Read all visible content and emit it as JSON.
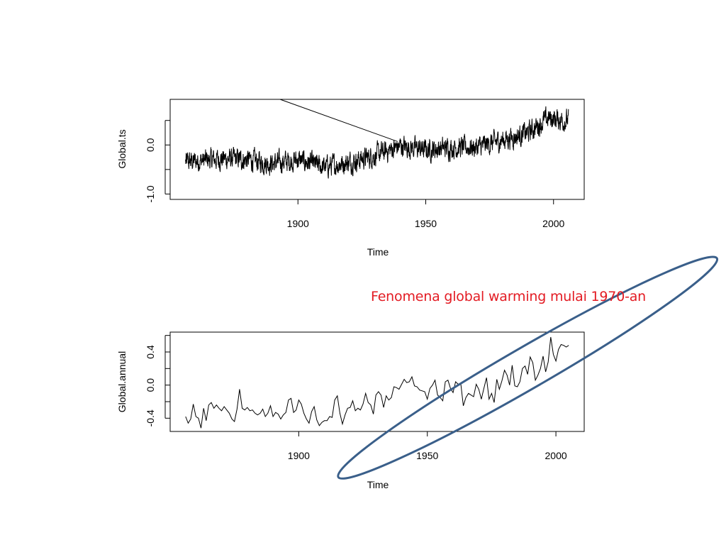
{
  "annotation": {
    "text": "Fenomena global warming mulai 1970-an",
    "color": "#e31b23"
  },
  "colors": {
    "series": "#000000",
    "highlight_ellipse": "#3a5f8a"
  },
  "chart_data": [
    {
      "type": "line",
      "series": [
        {
          "name": "Global.ts",
          "frequency": "monthly",
          "x_range": [
            1856,
            2005.9
          ],
          "y_range": [
            -1.03,
            0.85
          ],
          "shape_keypoints": [
            [
              1856,
              -0.35
            ],
            [
              1870,
              -0.28
            ],
            [
              1880,
              -0.3
            ],
            [
              1890,
              -0.38
            ],
            [
              1900,
              -0.3
            ],
            [
              1910,
              -0.45
            ],
            [
              1920,
              -0.35
            ],
            [
              1930,
              -0.22
            ],
            [
              1940,
              -0.02
            ],
            [
              1950,
              -0.1
            ],
            [
              1960,
              -0.05
            ],
            [
              1970,
              -0.05
            ],
            [
              1980,
              0.1
            ],
            [
              1990,
              0.25
            ],
            [
              1998,
              0.55
            ],
            [
              2005,
              0.5
            ]
          ]
        }
      ],
      "xlabel": "Time",
      "ylabel": "Global.ts",
      "x_ticks": [
        1900,
        1950,
        2000
      ],
      "y_ticks": [
        -1.0,
        -0.5,
        0.0,
        0.5
      ],
      "y_tick_labels": [
        "-1.0",
        "0.0"
      ],
      "xlim": [
        1850,
        2012
      ],
      "ylim": [
        -1.11,
        0.93
      ],
      "grid": false,
      "annotation_line": {
        "from": [
          1893,
          0.93
        ],
        "to": [
          1939,
          0.07
        ]
      }
    },
    {
      "type": "line",
      "series": [
        {
          "name": "Global.annual",
          "x": [
            1856,
            1857,
            1858,
            1859,
            1860,
            1861,
            1862,
            1863,
            1864,
            1865,
            1866,
            1867,
            1868,
            1869,
            1870,
            1871,
            1872,
            1873,
            1874,
            1875,
            1876,
            1877,
            1878,
            1879,
            1880,
            1881,
            1882,
            1883,
            1884,
            1885,
            1886,
            1887,
            1888,
            1889,
            1890,
            1891,
            1892,
            1893,
            1894,
            1895,
            1896,
            1897,
            1898,
            1899,
            1900,
            1901,
            1902,
            1903,
            1904,
            1905,
            1906,
            1907,
            1908,
            1909,
            1910,
            1911,
            1912,
            1913,
            1914,
            1915,
            1916,
            1917,
            1918,
            1919,
            1920,
            1921,
            1922,
            1923,
            1924,
            1925,
            1926,
            1927,
            1928,
            1929,
            1930,
            1931,
            1932,
            1933,
            1934,
            1935,
            1936,
            1937,
            1938,
            1939,
            1940,
            1941,
            1942,
            1943,
            1944,
            1945,
            1946,
            1947,
            1948,
            1949,
            1950,
            1951,
            1952,
            1953,
            1954,
            1955,
            1956,
            1957,
            1958,
            1959,
            1960,
            1961,
            1962,
            1963,
            1964,
            1965,
            1966,
            1967,
            1968,
            1969,
            1970,
            1971,
            1972,
            1973,
            1974,
            1975,
            1976,
            1977,
            1978,
            1979,
            1980,
            1981,
            1982,
            1983,
            1984,
            1985,
            1986,
            1987,
            1988,
            1989,
            1990,
            1991,
            1992,
            1993,
            1994,
            1995,
            1996,
            1997,
            1998,
            1999,
            2000,
            2001,
            2002,
            2003,
            2004,
            2005
          ],
          "values": [
            -0.38,
            -0.46,
            -0.41,
            -0.23,
            -0.38,
            -0.4,
            -0.52,
            -0.28,
            -0.43,
            -0.24,
            -0.21,
            -0.28,
            -0.24,
            -0.28,
            -0.31,
            -0.26,
            -0.3,
            -0.34,
            -0.41,
            -0.44,
            -0.29,
            -0.05,
            -0.28,
            -0.3,
            -0.27,
            -0.31,
            -0.3,
            -0.34,
            -0.36,
            -0.34,
            -0.29,
            -0.38,
            -0.34,
            -0.25,
            -0.38,
            -0.33,
            -0.35,
            -0.41,
            -0.36,
            -0.33,
            -0.18,
            -0.16,
            -0.33,
            -0.3,
            -0.18,
            -0.23,
            -0.34,
            -0.41,
            -0.46,
            -0.32,
            -0.26,
            -0.42,
            -0.49,
            -0.45,
            -0.43,
            -0.43,
            -0.38,
            -0.39,
            -0.18,
            -0.13,
            -0.34,
            -0.47,
            -0.36,
            -0.28,
            -0.27,
            -0.19,
            -0.31,
            -0.28,
            -0.3,
            -0.23,
            -0.1,
            -0.21,
            -0.24,
            -0.35,
            -0.12,
            -0.08,
            -0.12,
            -0.27,
            -0.13,
            -0.18,
            -0.15,
            -0.02,
            -0.03,
            -0.05,
            0.01,
            0.07,
            0.03,
            0.04,
            0.1,
            -0.01,
            -0.02,
            -0.06,
            -0.07,
            -0.08,
            -0.17,
            -0.04,
            0.0,
            0.06,
            -0.12,
            -0.15,
            -0.19,
            0.04,
            0.06,
            -0.04,
            -0.09,
            0.04,
            0.01,
            0.02,
            -0.25,
            -0.15,
            -0.1,
            -0.12,
            -0.14,
            0.01,
            -0.05,
            -0.17,
            -0.04,
            0.09,
            -0.17,
            -0.1,
            -0.21,
            0.07,
            -0.05,
            0.05,
            0.18,
            0.12,
            0.0,
            0.24,
            -0.01,
            -0.02,
            0.04,
            0.2,
            0.23,
            0.13,
            0.34,
            0.27,
            0.06,
            0.12,
            0.2,
            0.35,
            0.16,
            0.28,
            0.58,
            0.37,
            0.29,
            0.43,
            0.49,
            0.48,
            0.46,
            0.48
          ]
        }
      ],
      "xlabel": "Time",
      "ylabel": "Global.annual",
      "x_ticks": [
        1900,
        1950,
        2000
      ],
      "y_ticks": [
        -0.4,
        -0.2,
        0.0,
        0.2,
        0.4,
        0.6
      ],
      "y_tick_labels": [
        "-0.4",
        "0.0",
        "0.4"
      ],
      "xlim": [
        1850,
        2011
      ],
      "ylim": [
        -0.56,
        0.64
      ],
      "grid": false,
      "highlight_ellipse": {
        "center": [
          1989,
          0.21
        ],
        "semi_axes_years": [
          50,
          0.25
        ],
        "tilt_deg": -30
      }
    }
  ]
}
